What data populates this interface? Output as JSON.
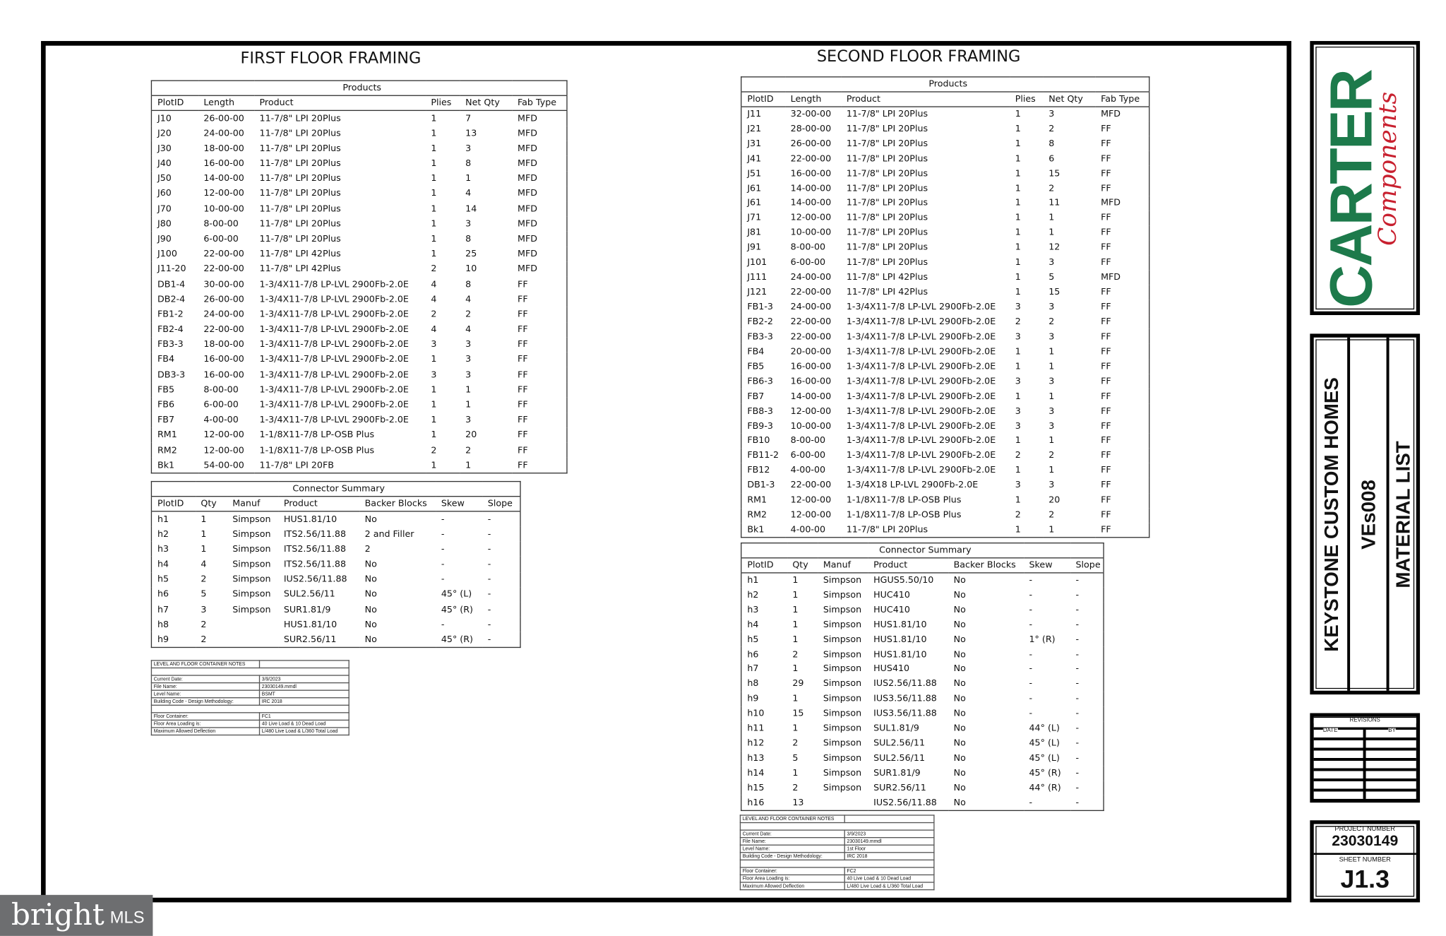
{
  "first_floor": {
    "title": "FIRST FLOOR FRAMING",
    "products": {
      "caption": "Products",
      "columns": [
        "PlotID",
        "Length",
        "Product",
        "Plies",
        "Net Qty",
        "Fab Type"
      ],
      "rows": [
        [
          "J10",
          "26-00-00",
          "11-7/8\" LPI 20Plus",
          1,
          7,
          "MFD"
        ],
        [
          "J20",
          "24-00-00",
          "11-7/8\" LPI 20Plus",
          1,
          13,
          "MFD"
        ],
        [
          "J30",
          "18-00-00",
          "11-7/8\" LPI 20Plus",
          1,
          3,
          "MFD"
        ],
        [
          "J40",
          "16-00-00",
          "11-7/8\" LPI 20Plus",
          1,
          8,
          "MFD"
        ],
        [
          "J50",
          "14-00-00",
          "11-7/8\" LPI 20Plus",
          1,
          1,
          "MFD"
        ],
        [
          "J60",
          "12-00-00",
          "11-7/8\" LPI 20Plus",
          1,
          4,
          "MFD"
        ],
        [
          "J70",
          "10-00-00",
          "11-7/8\" LPI 20Plus",
          1,
          14,
          "MFD"
        ],
        [
          "J80",
          "8-00-00",
          "11-7/8\" LPI 20Plus",
          1,
          3,
          "MFD"
        ],
        [
          "J90",
          "6-00-00",
          "11-7/8\" LPI 20Plus",
          1,
          8,
          "MFD"
        ],
        [
          "J100",
          "22-00-00",
          "11-7/8\" LPI 42Plus",
          1,
          25,
          "MFD"
        ],
        [
          "J11-20",
          "22-00-00",
          "11-7/8\" LPI 42Plus",
          2,
          10,
          "MFD"
        ],
        [
          "DB1-4",
          "30-00-00",
          "1-3/4X11-7/8 LP-LVL 2900Fb-2.0E",
          4,
          8,
          "FF"
        ],
        [
          "DB2-4",
          "26-00-00",
          "1-3/4X11-7/8 LP-LVL 2900Fb-2.0E",
          4,
          4,
          "FF"
        ],
        [
          "FB1-2",
          "24-00-00",
          "1-3/4X11-7/8 LP-LVL 2900Fb-2.0E",
          2,
          2,
          "FF"
        ],
        [
          "FB2-4",
          "22-00-00",
          "1-3/4X11-7/8 LP-LVL 2900Fb-2.0E",
          4,
          4,
          "FF"
        ],
        [
          "FB3-3",
          "18-00-00",
          "1-3/4X11-7/8 LP-LVL 2900Fb-2.0E",
          3,
          3,
          "FF"
        ],
        [
          "FB4",
          "16-00-00",
          "1-3/4X11-7/8 LP-LVL 2900Fb-2.0E",
          1,
          3,
          "FF"
        ],
        [
          "DB3-3",
          "16-00-00",
          "1-3/4X11-7/8 LP-LVL 2900Fb-2.0E",
          3,
          3,
          "FF"
        ],
        [
          "FB5",
          "8-00-00",
          "1-3/4X11-7/8 LP-LVL 2900Fb-2.0E",
          1,
          1,
          "FF"
        ],
        [
          "FB6",
          "6-00-00",
          "1-3/4X11-7/8 LP-LVL 2900Fb-2.0E",
          1,
          1,
          "FF"
        ],
        [
          "FB7",
          "4-00-00",
          "1-3/4X11-7/8 LP-LVL 2900Fb-2.0E",
          1,
          3,
          "FF"
        ],
        [
          "RM1",
          "12-00-00",
          "1-1/8X11-7/8 LP-OSB Plus",
          1,
          20,
          "FF"
        ],
        [
          "RM2",
          "12-00-00",
          "1-1/8X11-7/8 LP-OSB Plus",
          2,
          2,
          "FF"
        ],
        [
          "Bk1",
          "54-00-00",
          "11-7/8\" LPI 20FB",
          1,
          1,
          "FF"
        ]
      ]
    },
    "connectors": {
      "caption": "Connector Summary",
      "columns": [
        "PlotID",
        "Qty",
        "Manuf",
        "Product",
        "Backer Blocks",
        "Skew",
        "Slope"
      ],
      "rows": [
        [
          "h1",
          1,
          "Simpson",
          "HUS1.81/10",
          "No",
          "-",
          "-"
        ],
        [
          "h2",
          1,
          "Simpson",
          "ITS2.56/11.88",
          "2 and Filler",
          "-",
          "-"
        ],
        [
          "h3",
          1,
          "Simpson",
          "ITS2.56/11.88",
          "2",
          "-",
          "-"
        ],
        [
          "h4",
          4,
          "Simpson",
          "ITS2.56/11.88",
          "No",
          "-",
          "-"
        ],
        [
          "h5",
          2,
          "Simpson",
          "IUS2.56/11.88",
          "No",
          "-",
          "-"
        ],
        [
          "h6",
          5,
          "Simpson",
          "SUL2.56/11",
          "No",
          "45° (L)",
          "-"
        ],
        [
          "h7",
          3,
          "Simpson",
          "SUR1.81/9",
          "No",
          "45° (R)",
          "-"
        ],
        [
          "h8",
          2,
          null,
          "HUS1.81/10",
          "No",
          "-",
          "-"
        ],
        [
          "h9",
          2,
          null,
          "SUR2.56/11",
          "No",
          "45° (R)",
          "-"
        ]
      ]
    },
    "notes": {
      "title": "LEVEL AND FLOOR CONTAINER NOTES",
      "rows": [
        [
          "Current Date:",
          "3/9/2023"
        ],
        [
          "File Name:",
          "23030149.mmdl"
        ],
        [
          "Level Name:",
          "BSMT"
        ],
        [
          "Building Code - Design Methodology:",
          "IRC 2018"
        ],
        [
          "Floor Container:",
          "FC1"
        ],
        [
          "Floor Area Loading is:",
          "40 Live Load & 10 Dead Load"
        ],
        [
          "Maximum Allowed Deflection",
          "L/480 Live Load & L/360 Total Load"
        ]
      ]
    }
  },
  "second_floor": {
    "title": "SECOND FLOOR FRAMING",
    "products": {
      "caption": "Products",
      "columns": [
        "PlotID",
        "Length",
        "Product",
        "Plies",
        "Net Qty",
        "Fab Type"
      ],
      "rows": [
        [
          "J11",
          "32-00-00",
          "11-7/8\" LPI 20Plus",
          1,
          3,
          "MFD"
        ],
        [
          "J21",
          "28-00-00",
          "11-7/8\" LPI 20Plus",
          1,
          2,
          "FF"
        ],
        [
          "J31",
          "26-00-00",
          "11-7/8\" LPI 20Plus",
          1,
          8,
          "FF"
        ],
        [
          "J41",
          "22-00-00",
          "11-7/8\" LPI 20Plus",
          1,
          6,
          "FF"
        ],
        [
          "J51",
          "16-00-00",
          "11-7/8\" LPI 20Plus",
          1,
          15,
          "FF"
        ],
        [
          "J61",
          "14-00-00",
          "11-7/8\" LPI 20Plus",
          1,
          2,
          "FF"
        ],
        [
          "J61",
          "14-00-00",
          "11-7/8\" LPI 20Plus",
          1,
          11,
          "MFD"
        ],
        [
          "J71",
          "12-00-00",
          "11-7/8\" LPI 20Plus",
          1,
          1,
          "FF"
        ],
        [
          "J81",
          "10-00-00",
          "11-7/8\" LPI 20Plus",
          1,
          1,
          "FF"
        ],
        [
          "J91",
          "8-00-00",
          "11-7/8\" LPI 20Plus",
          1,
          12,
          "FF"
        ],
        [
          "J101",
          "6-00-00",
          "11-7/8\" LPI 20Plus",
          1,
          3,
          "FF"
        ],
        [
          "J111",
          "24-00-00",
          "11-7/8\" LPI 42Plus",
          1,
          5,
          "MFD"
        ],
        [
          "J121",
          "22-00-00",
          "11-7/8\" LPI 42Plus",
          1,
          15,
          "FF"
        ],
        [
          "FB1-3",
          "24-00-00",
          "1-3/4X11-7/8 LP-LVL 2900Fb-2.0E",
          3,
          3,
          "FF"
        ],
        [
          "FB2-2",
          "22-00-00",
          "1-3/4X11-7/8 LP-LVL 2900Fb-2.0E",
          2,
          2,
          "FF"
        ],
        [
          "FB3-3",
          "22-00-00",
          "1-3/4X11-7/8 LP-LVL 2900Fb-2.0E",
          3,
          3,
          "FF"
        ],
        [
          "FB4",
          "20-00-00",
          "1-3/4X11-7/8 LP-LVL 2900Fb-2.0E",
          1,
          1,
          "FF"
        ],
        [
          "FB5",
          "16-00-00",
          "1-3/4X11-7/8 LP-LVL 2900Fb-2.0E",
          1,
          1,
          "FF"
        ],
        [
          "FB6-3",
          "16-00-00",
          "1-3/4X11-7/8 LP-LVL 2900Fb-2.0E",
          3,
          3,
          "FF"
        ],
        [
          "FB7",
          "14-00-00",
          "1-3/4X11-7/8 LP-LVL 2900Fb-2.0E",
          1,
          1,
          "FF"
        ],
        [
          "FB8-3",
          "12-00-00",
          "1-3/4X11-7/8 LP-LVL 2900Fb-2.0E",
          3,
          3,
          "FF"
        ],
        [
          "FB9-3",
          "10-00-00",
          "1-3/4X11-7/8 LP-LVL 2900Fb-2.0E",
          3,
          3,
          "FF"
        ],
        [
          "FB10",
          "8-00-00",
          "1-3/4X11-7/8 LP-LVL 2900Fb-2.0E",
          1,
          1,
          "FF"
        ],
        [
          "FB11-2",
          "6-00-00",
          "1-3/4X11-7/8 LP-LVL 2900Fb-2.0E",
          2,
          2,
          "FF"
        ],
        [
          "FB12",
          "4-00-00",
          "1-3/4X11-7/8 LP-LVL 2900Fb-2.0E",
          1,
          1,
          "FF"
        ],
        [
          "DB1-3",
          "22-00-00",
          "1-3/4X18 LP-LVL 2900Fb-2.0E",
          3,
          3,
          "FF"
        ],
        [
          "RM1",
          "12-00-00",
          "1-1/8X11-7/8 LP-OSB Plus",
          1,
          20,
          "FF"
        ],
        [
          "RM2",
          "12-00-00",
          "1-1/8X11-7/8 LP-OSB Plus",
          2,
          2,
          "FF"
        ],
        [
          "Bk1",
          "4-00-00",
          "11-7/8\" LPI 20Plus",
          1,
          1,
          "FF"
        ]
      ]
    },
    "connectors": {
      "caption": "Connector Summary",
      "columns": [
        "PlotID",
        "Qty",
        "Manuf",
        "Product",
        "Backer Blocks",
        "Skew",
        "Slope"
      ],
      "rows": [
        [
          "h1",
          1,
          "Simpson",
          "HGUS5.50/10",
          "No",
          "-",
          "-"
        ],
        [
          "h2",
          1,
          "Simpson",
          "HUC410",
          "No",
          "-",
          "-"
        ],
        [
          "h3",
          1,
          "Simpson",
          "HUC410",
          "No",
          "-",
          "-"
        ],
        [
          "h4",
          1,
          "Simpson",
          "HUS1.81/10",
          "No",
          "-",
          "-"
        ],
        [
          "h5",
          1,
          "Simpson",
          "HUS1.81/10",
          "No",
          "1° (R)",
          "-"
        ],
        [
          "h6",
          2,
          "Simpson",
          "HUS1.81/10",
          "No",
          "-",
          "-"
        ],
        [
          "h7",
          1,
          "Simpson",
          "HUS410",
          "No",
          "-",
          "-"
        ],
        [
          "h8",
          29,
          "Simpson",
          "IUS2.56/11.88",
          "No",
          "-",
          "-"
        ],
        [
          "h9",
          1,
          "Simpson",
          "IUS3.56/11.88",
          "No",
          "-",
          "-"
        ],
        [
          "h10",
          15,
          "Simpson",
          "IUS3.56/11.88",
          "No",
          "-",
          "-"
        ],
        [
          "h11",
          1,
          "Simpson",
          "SUL1.81/9",
          "No",
          "44° (L)",
          "-"
        ],
        [
          "h12",
          2,
          "Simpson",
          "SUL2.56/11",
          "No",
          "45° (L)",
          "-"
        ],
        [
          "h13",
          5,
          "Simpson",
          "SUL2.56/11",
          "No",
          "45° (L)",
          "-"
        ],
        [
          "h14",
          1,
          "Simpson",
          "SUR1.81/9",
          "No",
          "45° (R)",
          "-"
        ],
        [
          "h15",
          2,
          "Simpson",
          "SUR2.56/11",
          "No",
          "44° (R)",
          "-"
        ],
        [
          "h16",
          13,
          null,
          "IUS2.56/11.88",
          "No",
          "-",
          "-"
        ]
      ]
    },
    "notes": {
      "title": "LEVEL AND FLOOR CONTAINER NOTES",
      "rows": [
        [
          "Current Date:",
          "3/9/2023"
        ],
        [
          "File Name:",
          "23030149.mmdl"
        ],
        [
          "Level Name:",
          "1st Floor"
        ],
        [
          "Building Code - Design Methodology:",
          "IRC 2018"
        ],
        [
          "Floor Container:",
          "FC2"
        ],
        [
          "Floor Area Loading is:",
          "40 Live Load & 10 Dead Load"
        ],
        [
          "Maximum Allowed Deflection",
          "L/480 Live Load & L/360 Total Load"
        ]
      ]
    }
  },
  "title_block": {
    "logo_main": "CARTER",
    "logo_sub": "Components",
    "client": "KEYSTONE CUSTOM HOMES",
    "plan": "VEs008",
    "sheet_title": "MATERIAL LIST",
    "revisions": "REVISIONS",
    "date_label": "DATE",
    "by_label": "BY",
    "project_number_label": "PROJECT NUMBER",
    "project_number": "23030149",
    "sheet_number_label": "SHEET NUMBER",
    "sheet_number": "J1.3"
  },
  "watermark": {
    "brand": "bright",
    "suffix": "MLS"
  }
}
